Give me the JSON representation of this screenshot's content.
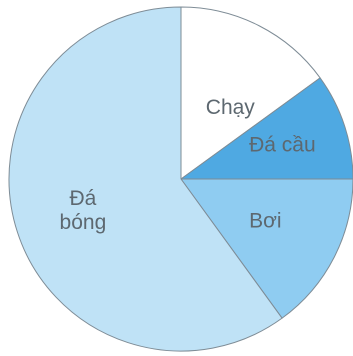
{
  "chart_data": {
    "type": "pie",
    "start_angle_deg": -90,
    "direction": "clockwise",
    "slices": [
      {
        "label": "Chạy",
        "value": 15,
        "color": "#ffffff"
      },
      {
        "label": "Đá cầu",
        "value": 10,
        "color": "#4fa9e2"
      },
      {
        "label": "Bơi",
        "value": 15,
        "color": "#8fccf1"
      },
      {
        "label": "Đá bóng",
        "value": 60,
        "color": "#bfe2f6"
      }
    ]
  }
}
